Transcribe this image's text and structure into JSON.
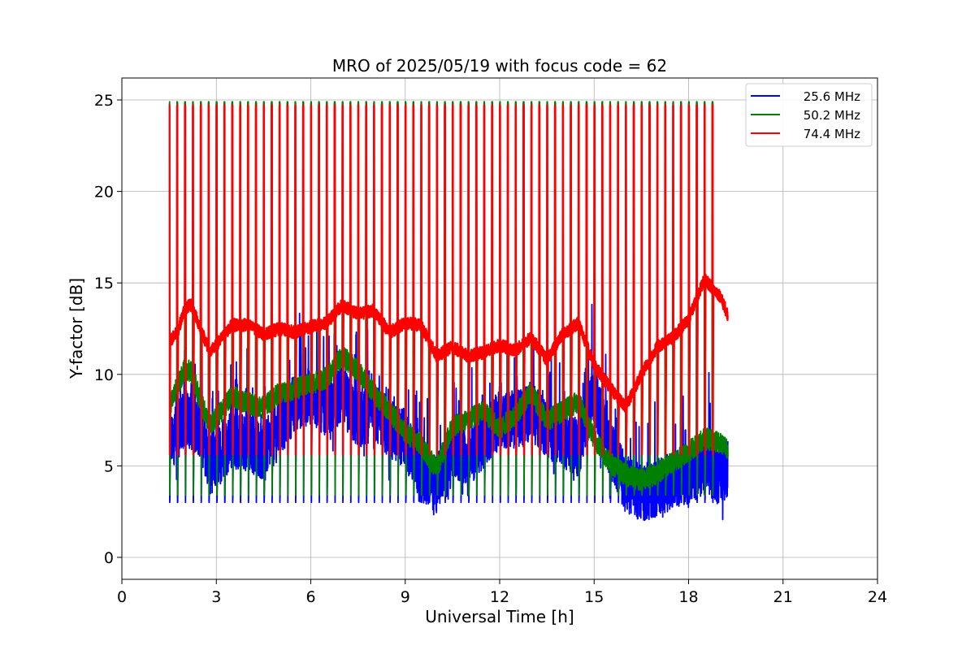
{
  "chart_data": {
    "type": "line",
    "title": "MRO of 2025/05/19 with focus code = 62",
    "xlabel": "Universal Time [h]",
    "ylabel": "Y-factor [dB]",
    "xlim": [
      0,
      24
    ],
    "ylim": [
      -1.2,
      26.2
    ],
    "xticks": [
      0,
      3,
      6,
      9,
      12,
      15,
      18,
      21,
      24
    ],
    "yticks": [
      0,
      5,
      10,
      15,
      20,
      25
    ],
    "grid": true,
    "legend_position": "top-right",
    "calibration": {
      "start_h": 1.5,
      "end_h": 19.0,
      "period_h": 0.25,
      "pulse_h": 0.04,
      "high": {
        "25.6 MHz": 24.8,
        "50.2 MHz": 24.9,
        "74.4 MHz": 24.7
      },
      "low": {
        "25.6 MHz": 3.0,
        "50.2 MHz": 3.4,
        "74.4 MHz": 5.6
      }
    },
    "series": [
      {
        "name": "25.6 MHz",
        "color": "#0000ff",
        "x": [
          1.5,
          2.0,
          2.5,
          2.8,
          3.0,
          3.5,
          4.0,
          4.5,
          5.0,
          5.5,
          6.0,
          6.5,
          7.0,
          7.5,
          8.0,
          8.5,
          9.0,
          9.5,
          10.0,
          10.5,
          11.0,
          11.5,
          12.0,
          12.5,
          13.0,
          13.5,
          14.0,
          14.5,
          15.0,
          15.5,
          16.0,
          16.5,
          17.0,
          17.5,
          18.0,
          18.5,
          19.0,
          19.25
        ],
        "values": [
          6.2,
          7.6,
          7.0,
          5.0,
          5.3,
          6.5,
          6.3,
          5.8,
          7.0,
          8.5,
          8.8,
          8.2,
          8.8,
          7.5,
          8.0,
          7.0,
          6.5,
          4.5,
          4.0,
          6.0,
          5.5,
          6.5,
          7.5,
          7.5,
          8.0,
          7.0,
          6.5,
          6.0,
          9.0,
          6.0,
          4.0,
          3.5,
          3.8,
          4.2,
          4.5,
          5.0,
          4.5,
          4.8
        ]
      },
      {
        "name": "50.2 MHz",
        "color": "#008000",
        "x": [
          1.5,
          1.8,
          2.0,
          2.2,
          2.5,
          2.8,
          3.0,
          3.5,
          4.0,
          4.5,
          5.0,
          5.5,
          6.0,
          6.5,
          7.0,
          7.5,
          8.0,
          8.5,
          9.0,
          9.5,
          10.0,
          10.5,
          11.0,
          11.5,
          12.0,
          12.5,
          13.0,
          13.5,
          14.0,
          14.5,
          15.0,
          15.5,
          16.0,
          16.5,
          17.0,
          17.5,
          18.0,
          18.5,
          19.0,
          19.25
        ],
        "values": [
          8.2,
          9.5,
          10.3,
          10.2,
          8.5,
          7.2,
          7.6,
          8.8,
          8.4,
          8.2,
          9.0,
          9.2,
          9.5,
          9.8,
          11.0,
          10.2,
          9.0,
          8.0,
          6.8,
          6.2,
          4.8,
          7.2,
          7.5,
          8.0,
          7.0,
          7.8,
          9.0,
          7.5,
          8.0,
          8.5,
          6.5,
          5.2,
          4.5,
          4.2,
          4.6,
          5.2,
          5.8,
          6.5,
          6.3,
          6.0
        ]
      },
      {
        "name": "74.4 MHz",
        "color": "#ff0000",
        "x": [
          1.5,
          1.8,
          2.0,
          2.2,
          2.5,
          2.8,
          3.0,
          3.5,
          4.0,
          4.5,
          5.0,
          5.5,
          6.0,
          6.5,
          7.0,
          7.5,
          8.0,
          8.5,
          9.0,
          9.5,
          10.0,
          10.5,
          11.0,
          11.5,
          12.0,
          12.5,
          13.0,
          13.5,
          14.0,
          14.5,
          15.0,
          15.5,
          16.0,
          16.5,
          17.0,
          17.5,
          18.0,
          18.5,
          19.0,
          19.25
        ],
        "values": [
          11.7,
          12.5,
          13.6,
          13.8,
          12.5,
          11.2,
          11.6,
          12.7,
          12.7,
          12.2,
          12.5,
          12.3,
          12.6,
          12.8,
          13.8,
          13.3,
          13.5,
          12.3,
          12.8,
          12.7,
          11.0,
          11.5,
          11.0,
          11.2,
          11.6,
          11.3,
          12.0,
          10.8,
          12.2,
          12.8,
          10.5,
          9.3,
          8.2,
          10.0,
          11.5,
          12.0,
          13.0,
          15.2,
          14.3,
          13.2
        ]
      }
    ]
  }
}
